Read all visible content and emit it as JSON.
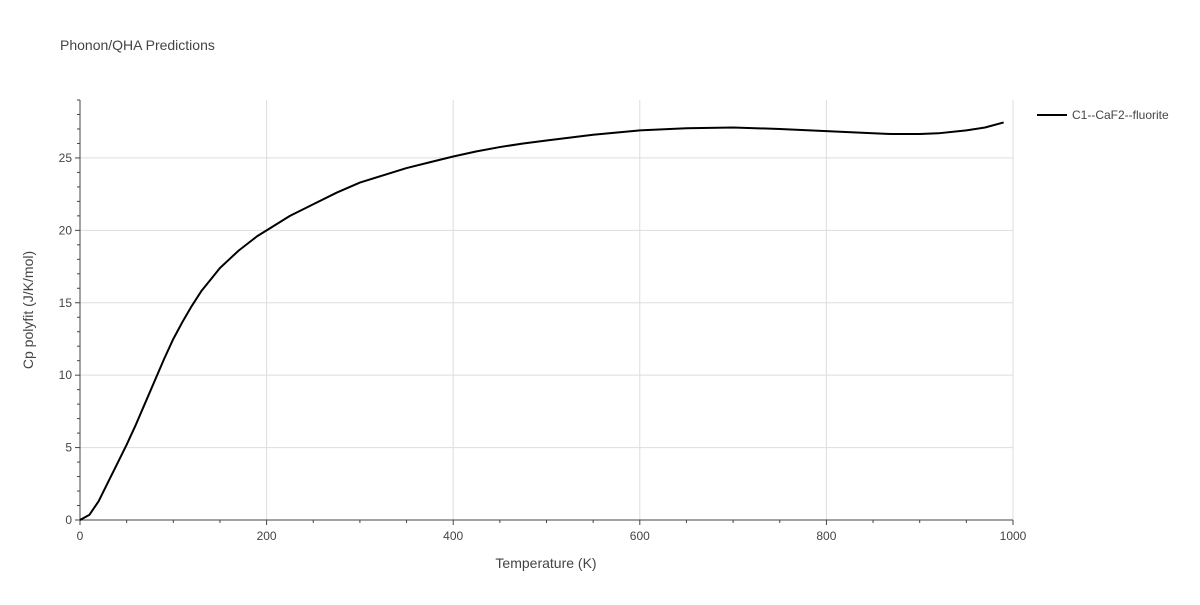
{
  "chart_data": {
    "type": "line",
    "title": "Phonon/QHA Predictions",
    "xlabel": "Temperature (K)",
    "ylabel": "Cp polyfit (J/K/mol)",
    "xlim": [
      0,
      1000
    ],
    "ylim": [
      0,
      29
    ],
    "xticks": [
      0,
      200,
      400,
      600,
      800,
      1000
    ],
    "yticks": [
      0,
      5,
      10,
      15,
      20,
      25
    ],
    "grid": true,
    "legend_position": "top-right",
    "series": [
      {
        "name": "C1--CaF2--fluorite",
        "color": "#000000",
        "x": [
          0,
          10,
          20,
          30,
          40,
          50,
          60,
          70,
          80,
          90,
          100,
          110,
          120,
          130,
          140,
          150,
          160,
          170,
          180,
          190,
          200,
          225,
          250,
          275,
          300,
          325,
          350,
          375,
          400,
          425,
          450,
          475,
          500,
          550,
          600,
          650,
          700,
          750,
          800,
          850,
          870,
          900,
          920,
          950,
          970,
          990
        ],
        "y": [
          0,
          0.35,
          1.3,
          2.6,
          3.9,
          5.2,
          6.6,
          8.1,
          9.6,
          11.1,
          12.5,
          13.7,
          14.8,
          15.8,
          16.6,
          17.4,
          18.0,
          18.6,
          19.1,
          19.6,
          20.0,
          21.0,
          21.8,
          22.6,
          23.3,
          23.8,
          24.3,
          24.7,
          25.1,
          25.45,
          25.75,
          26.0,
          26.2,
          26.6,
          26.9,
          27.05,
          27.1,
          27.0,
          26.85,
          26.7,
          26.65,
          26.65,
          26.7,
          26.9,
          27.1,
          27.45
        ]
      }
    ]
  }
}
